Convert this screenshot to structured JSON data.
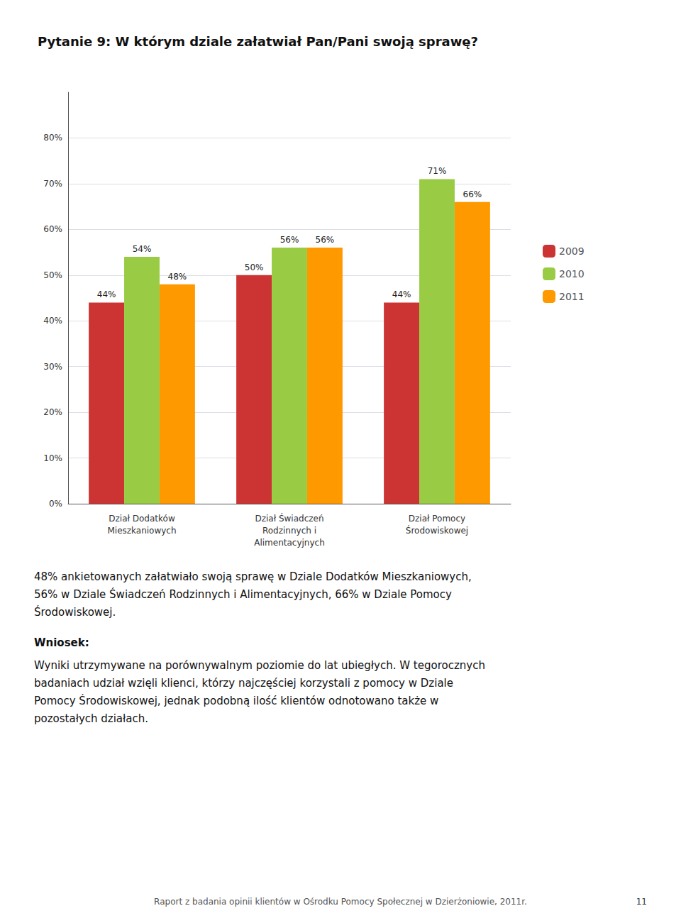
{
  "chart_data": {
    "type": "bar",
    "title": "Pytanie 9: W którym dziale załatwiał Pan/Pani swoją sprawę?",
    "categories": [
      "Dział Dodatków\nMieszkaniowych",
      "Dział Świadczeń\nRodzinnych i\nAlimentacyjnych",
      "Dział Pomocy\nŚrodowiskowej"
    ],
    "series": [
      {
        "name": "2009",
        "color": "#cc3333",
        "values": [
          44,
          50,
          44
        ],
        "value_labels": [
          "44%",
          "50%",
          "44%"
        ]
      },
      {
        "name": "2010",
        "color": "#99cc44",
        "values": [
          54,
          56,
          71
        ],
        "value_labels": [
          "54%",
          "56%",
          "71%"
        ]
      },
      {
        "name": "2011",
        "color": "#ff9900",
        "values": [
          48,
          56,
          66
        ],
        "value_labels": [
          "48%",
          "56%",
          "66%"
        ]
      }
    ],
    "ylim": [
      0,
      90
    ],
    "yticks": [
      {
        "value": 0,
        "label": "0%"
      },
      {
        "value": 10,
        "label": "10%"
      },
      {
        "value": 20,
        "label": "20%"
      },
      {
        "value": 30,
        "label": "30%"
      },
      {
        "value": 40,
        "label": "40%"
      },
      {
        "value": 50,
        "label": "50%"
      },
      {
        "value": 60,
        "label": "60%"
      },
      {
        "value": 70,
        "label": "70%"
      },
      {
        "value": 80,
        "label": "80%"
      }
    ],
    "grid": true,
    "legend": "right",
    "data_labels": true,
    "annotations": [
      "48% ankietowanych załatwiało swoją sprawę w Dziale Dodatków Mieszkaniowych,\n56% w Dziale Świadczeń Rodzinnych i Alimentacyjnych, 66% w Dziale Pomocy\nŚrodowiskowej.",
      "Wniosek:",
      "Wyniki utrzymywane na porównywalnym poziomie do lat ubiegłych. W tegorocznych\nbadaniach udział wzięli klienci, którzy najczęściej korzystali z pomocy w Dziale\nPomocy Środowiskowej, jednak podobną ilość klientów odnotowano także w\npozostałych działach.",
      "Raport z badania opinii klientów w Ośrodku Pomocy Społecznej w Dzierżoniowie, 2011r.",
      "11"
    ]
  }
}
